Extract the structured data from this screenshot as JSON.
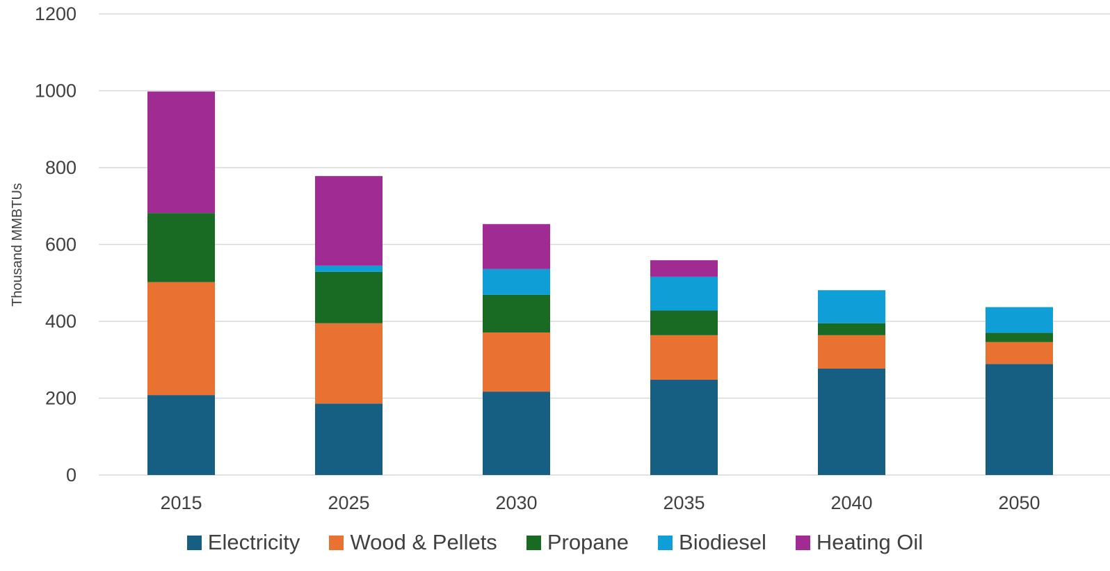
{
  "chart_data": {
    "type": "bar",
    "stacked": true,
    "categories": [
      "2015",
      "2025",
      "2030",
      "2035",
      "2040",
      "2050"
    ],
    "series": [
      {
        "name": "Electricity",
        "color": "#175E83",
        "values": [
          208,
          186,
          217,
          248,
          277,
          289
        ]
      },
      {
        "name": "Wood & Pellets",
        "color": "#E97132",
        "values": [
          294,
          209,
          154,
          116,
          87,
          57
        ]
      },
      {
        "name": "Propane",
        "color": "#196B24",
        "values": [
          180,
          134,
          98,
          64,
          31,
          24
        ]
      },
      {
        "name": "Biodiesel",
        "color": "#0F9ED5",
        "values": [
          0,
          16,
          67,
          88,
          86,
          67
        ]
      },
      {
        "name": "Heating Oil",
        "color": "#A02B93",
        "values": [
          316,
          233,
          117,
          43,
          0,
          0
        ]
      }
    ],
    "title": "",
    "xlabel": "",
    "ylabel": "Thousand MMBTUs",
    "ylim": [
      0,
      1200
    ],
    "yticks": [
      "0",
      "200",
      "400",
      "600",
      "800",
      "1000",
      "1200"
    ],
    "grid": true,
    "legend_position": "bottom"
  }
}
